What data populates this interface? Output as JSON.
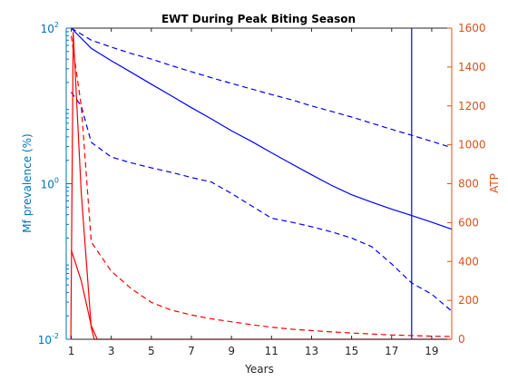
{
  "chart_data": {
    "type": "line",
    "title": "EWT During Peak Biting Season",
    "xlabel": "Years",
    "ylabel_left": "Mf prevalence (%)",
    "ylabel_right": "ATP",
    "xlim": [
      0.75,
      20
    ],
    "ylim_left": [
      0.01,
      100
    ],
    "yscale_left": "log",
    "ylim_right": [
      0,
      1600
    ],
    "x_ticks": [
      "1",
      "3",
      "5",
      "7",
      "9",
      "11",
      "13",
      "15",
      "17",
      "19"
    ],
    "y_left_ticks": [
      {
        "value": 100,
        "base": "10",
        "exp": "2"
      },
      {
        "value": 1,
        "base": "10",
        "exp": "0"
      },
      {
        "value": 0.01,
        "base": "10",
        "exp": "-2"
      }
    ],
    "y_right_ticks": [
      "0",
      "200",
      "400",
      "600",
      "800",
      "1000",
      "1200",
      "1400",
      "1600"
    ],
    "colors": {
      "left": "#0072BD",
      "right": "#D95319",
      "blue": "#0000FF",
      "red": "#FF0000"
    },
    "grid": false,
    "legend": "none",
    "series": [
      {
        "axis": "left",
        "color": "#0000FF",
        "style": "solid",
        "x": [
          1,
          2,
          3,
          4,
          5,
          6,
          7,
          8,
          9,
          10,
          11,
          12,
          13,
          14,
          15,
          16,
          17,
          18,
          19,
          20
        ],
        "y": [
          100,
          55,
          38,
          27,
          19,
          13.5,
          9.5,
          6.8,
          4.8,
          3.5,
          2.5,
          1.8,
          1.3,
          0.95,
          0.72,
          0.58,
          0.47,
          0.39,
          0.32,
          0.26
        ]
      },
      {
        "axis": "left",
        "color": "#0000FF",
        "style": "dashed",
        "x": [
          1,
          2,
          3,
          4,
          5,
          6,
          7,
          8,
          9,
          10,
          11,
          12,
          13,
          14,
          15,
          16,
          17,
          18,
          19,
          20
        ],
        "y": [
          100,
          70,
          57,
          47,
          40,
          33,
          27.5,
          23,
          19.5,
          16.5,
          14,
          12,
          10,
          8.5,
          7.2,
          6,
          5,
          4.2,
          3.5,
          2.9
        ]
      },
      {
        "axis": "left",
        "color": "#0000FF",
        "style": "dashed",
        "x": [
          1,
          1.5,
          2,
          3,
          4,
          5,
          6,
          7,
          8,
          9,
          10,
          11,
          12,
          13,
          14,
          15,
          16,
          17,
          18,
          19,
          20
        ],
        "y": [
          15,
          10,
          3.4,
          2.2,
          1.85,
          1.6,
          1.4,
          1.2,
          1.05,
          0.75,
          0.52,
          0.36,
          0.32,
          0.28,
          0.24,
          0.2,
          0.155,
          0.093,
          0.053,
          0.038,
          0.023
        ]
      },
      {
        "axis": "left",
        "color": "#0000FF",
        "style": "solid",
        "x": [
          18,
          18
        ],
        "y": [
          100,
          0.01
        ]
      },
      {
        "axis": "right",
        "color": "#FF0000",
        "style": "solid",
        "x": [
          0.98,
          1.1,
          1.5,
          2,
          2.15,
          20
        ],
        "y": [
          0,
          1580,
          750,
          60,
          0,
          0
        ]
      },
      {
        "axis": "right",
        "color": "#FF0000",
        "style": "solid",
        "x": [
          1,
          1.5,
          2,
          2.3
        ],
        "y": [
          460,
          300,
          70,
          0
        ]
      },
      {
        "axis": "right",
        "color": "#FF0000",
        "style": "dashed",
        "x": [
          1,
          1.5,
          2,
          3,
          4,
          5,
          6,
          7,
          8,
          9,
          10,
          11,
          12,
          13,
          14,
          15,
          16,
          17,
          18,
          19,
          20
        ],
        "y": [
          1560,
          1200,
          500,
          350,
          260,
          190,
          150,
          125,
          105,
          90,
          75,
          62,
          52,
          45,
          38,
          32,
          27,
          22,
          19,
          16,
          14
        ]
      }
    ]
  }
}
